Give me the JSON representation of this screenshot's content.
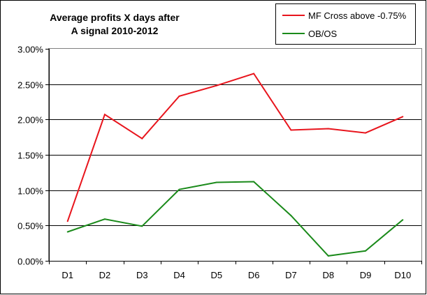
{
  "chart_data": {
    "type": "line",
    "title_lines": [
      "Average profits X days after",
      "A signal 2010-2012"
    ],
    "xlabel": "",
    "ylabel": "",
    "categories": [
      "D1",
      "D2",
      "D3",
      "D4",
      "D5",
      "D6",
      "D7",
      "D8",
      "D9",
      "D10"
    ],
    "y_ticks": [
      "0.00%",
      "0.50%",
      "1.00%",
      "1.50%",
      "2.00%",
      "2.50%",
      "3.00%"
    ],
    "ylim": [
      0,
      3.0
    ],
    "y_unit": "%",
    "grid": true,
    "legend_position": "top-right",
    "series": [
      {
        "name": "MF Cross above -0.75%",
        "color": "#e8141c",
        "values": [
          0.56,
          2.07,
          1.73,
          2.33,
          2.48,
          2.65,
          1.85,
          1.87,
          1.81,
          2.04
        ]
      },
      {
        "name": "OB/OS",
        "color": "#1a8a1a",
        "values": [
          0.41,
          0.59,
          0.49,
          1.01,
          1.11,
          1.12,
          0.64,
          0.07,
          0.14,
          0.58
        ]
      }
    ]
  }
}
